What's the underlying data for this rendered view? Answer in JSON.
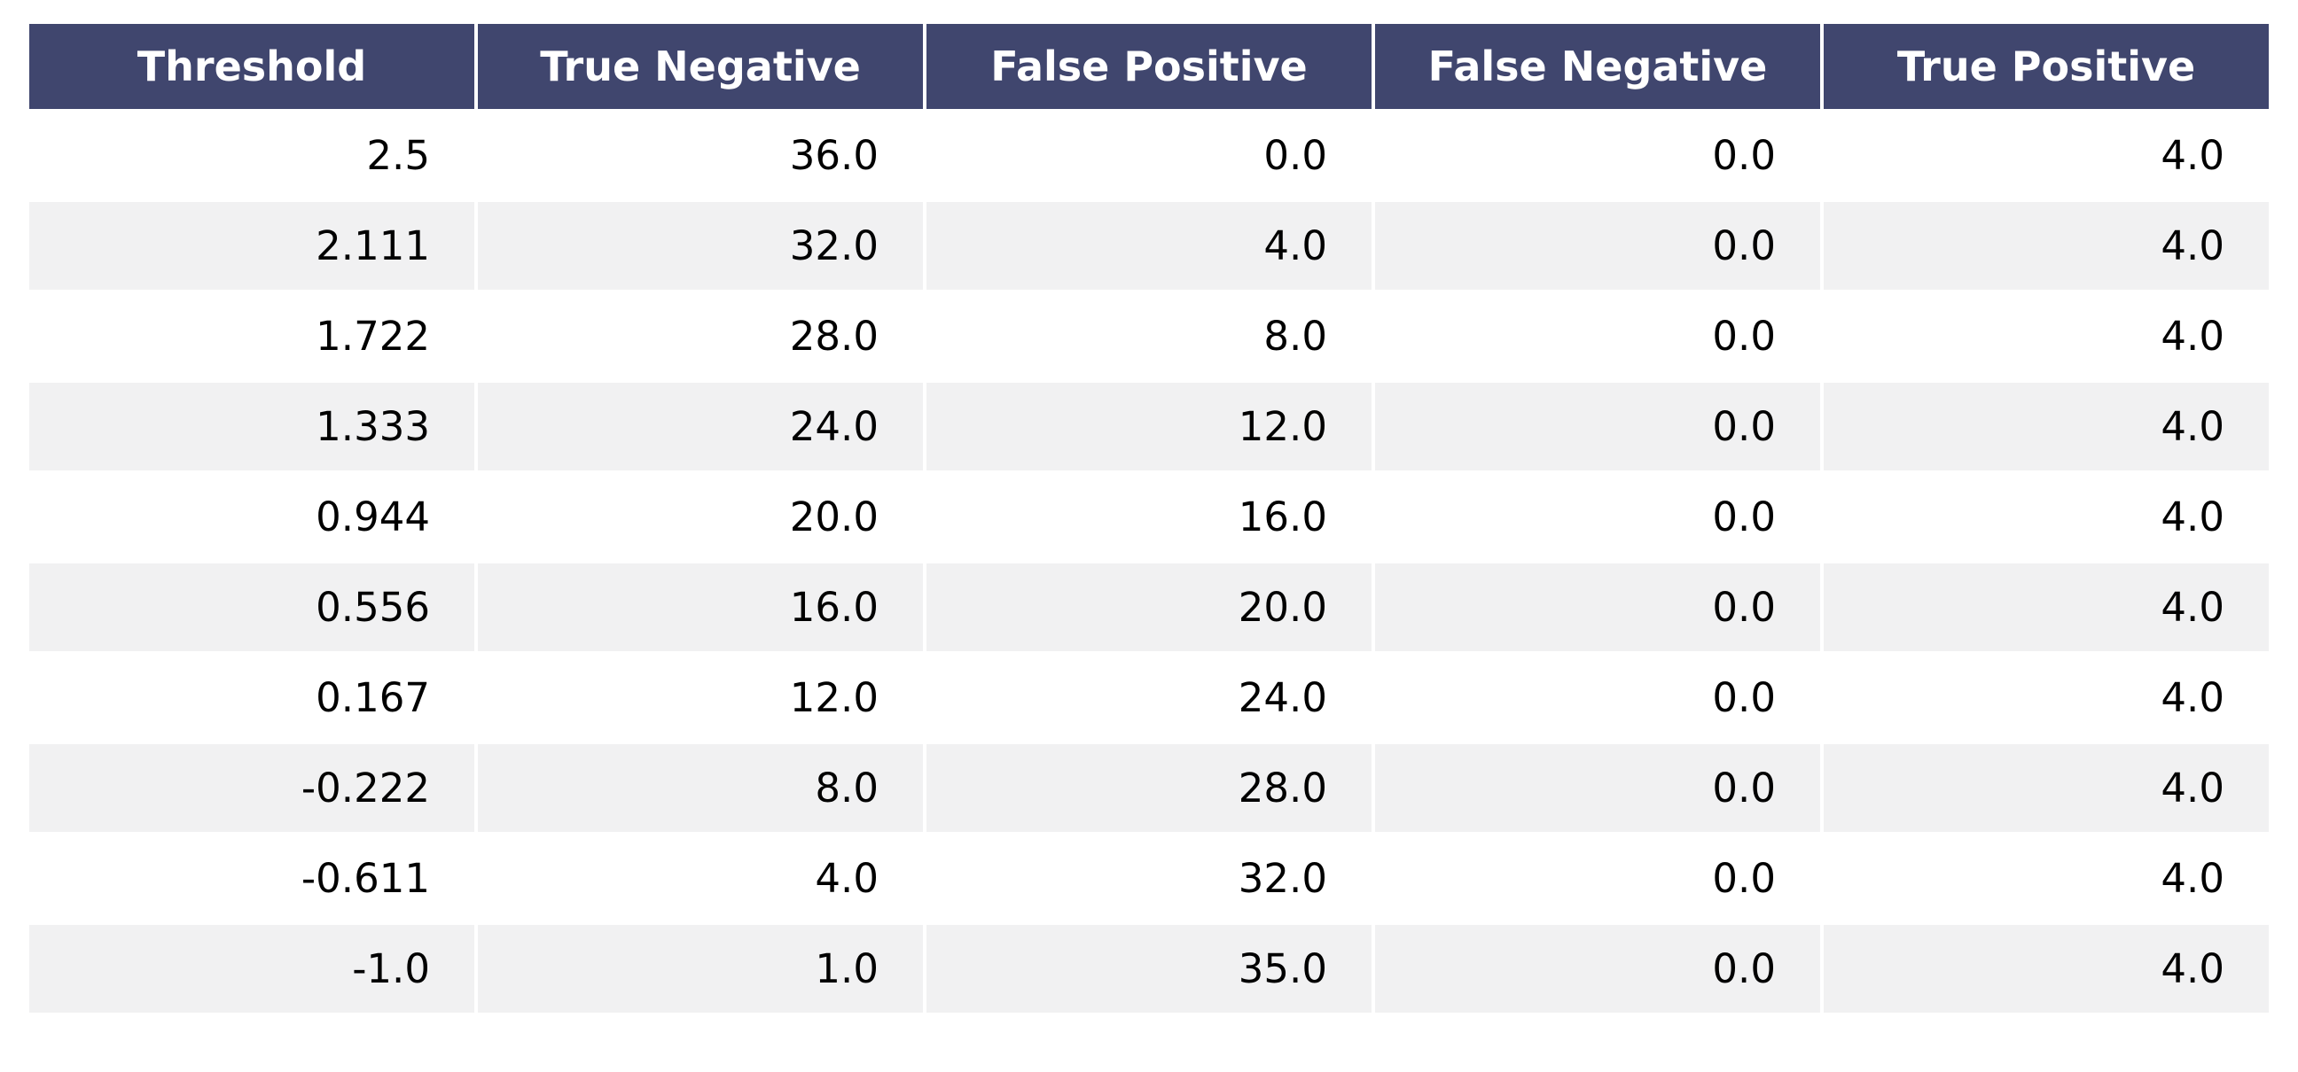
{
  "page": {
    "background": "#ffffff"
  },
  "chart_data": {
    "type": "table",
    "columns": [
      "Threshold",
      "True Negative",
      "False Positive",
      "False Negative",
      "True Positive"
    ],
    "rows": [
      [
        "2.5",
        "36.0",
        "0.0",
        "0.0",
        "4.0"
      ],
      [
        "2.111",
        "32.0",
        "4.0",
        "0.0",
        "4.0"
      ],
      [
        "1.722",
        "28.0",
        "8.0",
        "0.0",
        "4.0"
      ],
      [
        "1.333",
        "24.0",
        "12.0",
        "0.0",
        "4.0"
      ],
      [
        "0.944",
        "20.0",
        "16.0",
        "0.0",
        "4.0"
      ],
      [
        "0.556",
        "16.0",
        "20.0",
        "0.0",
        "4.0"
      ],
      [
        "0.167",
        "12.0",
        "24.0",
        "0.0",
        "4.0"
      ],
      [
        "-0.222",
        "8.0",
        "28.0",
        "0.0",
        "4.0"
      ],
      [
        "-0.611",
        "4.0",
        "32.0",
        "0.0",
        "4.0"
      ],
      [
        "-1.0",
        "1.0",
        "35.0",
        "0.0",
        "4.0"
      ]
    ],
    "layout": {
      "header_align": "center",
      "cell_align": "right",
      "striped": true,
      "grid": "white-gaps-between-cells"
    }
  },
  "colors": {
    "header_bg": "#40466e",
    "header_text": "#ffffff",
    "row_even_bg": "#f1f1f2",
    "row_odd_bg": "#ffffff",
    "cell_text": "#000000",
    "page_bg": "#ffffff"
  }
}
